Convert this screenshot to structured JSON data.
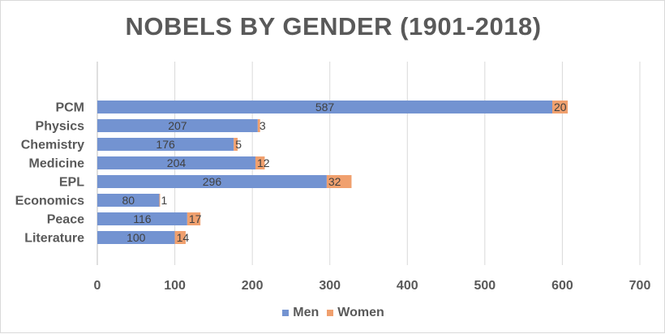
{
  "chart_data": {
    "type": "bar",
    "orientation": "horizontal",
    "stacked": true,
    "title": "NOBELS BY GENDER (1901-2018)",
    "xlabel": "",
    "ylabel": "",
    "categories": [
      "PCM",
      "Physics",
      "Chemistry",
      "Medicine",
      "EPL",
      "Economics",
      "Peace",
      "Literature"
    ],
    "series": [
      {
        "name": "Men",
        "values": [
          587,
          207,
          176,
          204,
          296,
          80,
          116,
          100
        ],
        "color": "#7393d1"
      },
      {
        "name": "Women",
        "values": [
          20,
          3,
          5,
          12,
          32,
          1,
          17,
          14
        ],
        "color": "#f0a06e"
      }
    ],
    "xlim": [
      0,
      700
    ],
    "xticks": [
      "0",
      "100",
      "200",
      "300",
      "400",
      "500",
      "600",
      "700"
    ],
    "grid": true,
    "legend_position": "bottom",
    "colors": {
      "title": "#595959",
      "axis_text": "#595959",
      "gridline": "#d9d9d9",
      "data_label": "#404040"
    }
  }
}
